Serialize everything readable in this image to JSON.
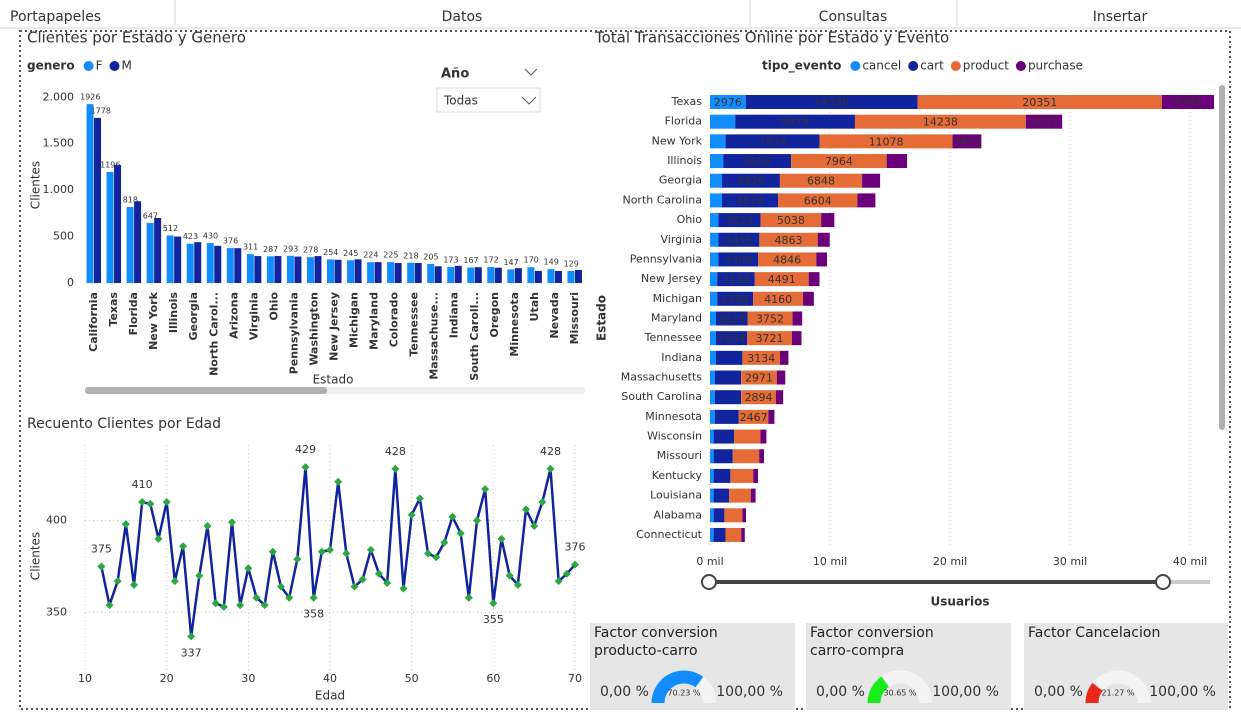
{
  "ribbon": {
    "tabs": [
      "Portapapeles",
      "Datos",
      "Consultas",
      "Insertar"
    ]
  },
  "slicer": {
    "title": "Año",
    "selection": "Todas"
  },
  "chart_data": [
    {
      "type": "bar",
      "title": "Clientes por Estado y Genero",
      "legend_title": "genero",
      "x_label": "Estado",
      "y_label": "Clientes",
      "categories": [
        "California",
        "Texas",
        "Florida",
        "New York",
        "Illinois",
        "Georgia",
        "North Carol...",
        "Arizona",
        "Virginia",
        "Ohio",
        "Pennsylvania",
        "Washington",
        "New Jersey",
        "Michigan",
        "Maryland",
        "Colorado",
        "Tennessee",
        "Massachuse...",
        "Indiana",
        "South Caroll...",
        "Oregon",
        "Minnesota",
        "Utah",
        "Nevada",
        "Missouri"
      ],
      "series": [
        {
          "name": "F",
          "color": "#118dff",
          "data_labels": true,
          "values": [
            1926,
            1196,
            818,
            647,
            512,
            423,
            430,
            376,
            311,
            287,
            293,
            278,
            254,
            245,
            224,
            225,
            218,
            205,
            173,
            167,
            172,
            147,
            170,
            149,
            129
          ]
        },
        {
          "name": "M",
          "color": "#12239e",
          "data_labels": false,
          "values": [
            1778,
            1270,
            880,
            700,
            500,
            440,
            400,
            375,
            290,
            290,
            285,
            290,
            250,
            255,
            225,
            215,
            215,
            180,
            185,
            170,
            165,
            160,
            130,
            130,
            140
          ],
          "value_labels": [
            "1778",
            null,
            null,
            null,
            null,
            null,
            null,
            null,
            null,
            null,
            null,
            null,
            null,
            null,
            null,
            null,
            null,
            null,
            null,
            null,
            null,
            null,
            null,
            null,
            null
          ]
        }
      ],
      "ylim": [
        0,
        2100
      ],
      "yticks": [
        0,
        500,
        {
          "value": 1000,
          "label": "1.000"
        },
        {
          "value": 1500,
          "label": "1.500"
        },
        {
          "value": 2000,
          "label": "2.000"
        }
      ],
      "grid": false
    },
    {
      "type": "barh",
      "title": "Total Transacciones Online por Estado y Evento",
      "legend_title": "tipo_evento",
      "x_label": "Usuarios",
      "y_label": "Estado",
      "categories": [
        "Texas",
        "Florida",
        "New York",
        "Illinois",
        "Georgia",
        "North Carolina",
        "Ohio",
        "Virginia",
        "Pennsylvania",
        "New Jersey",
        "Michigan",
        "Maryland",
        "Tennessee",
        "Indiana",
        "Massachusetts",
        "South Carolina",
        "Minnesota",
        "Wisconsin",
        "Missouri",
        "Kentucky",
        "Louisiana",
        "Alabama",
        "Connecticut"
      ],
      "series": [
        {
          "name": "cancel",
          "color": "#118dff",
          "values": [
            2976,
            2100,
            1300,
            1100,
            1000,
            1000,
            700,
            700,
            700,
            600,
            600,
            500,
            500,
            500,
            400,
            400,
            400,
            300,
            300,
            300,
            300,
            300,
            300
          ]
        },
        {
          "name": "cart",
          "color": "#12239e",
          "values": [
            14330,
            9979,
            7834,
            5658,
            4826,
            4676,
            3523,
            3415,
            3309,
            3134,
            2994,
            2628,
            2604,
            2200,
            2200,
            2200,
            2000,
            1700,
            1600,
            1400,
            1300,
            900,
            1000
          ]
        },
        {
          "name": "product",
          "color": "#e66c37",
          "values": [
            20351,
            14238,
            11078,
            7964,
            6848,
            6604,
            5038,
            4863,
            4846,
            4491,
            4160,
            3752,
            3721,
            3134,
            2971,
            2894,
            2467,
            2200,
            2200,
            1900,
            1800,
            1500,
            1300
          ]
        },
        {
          "name": "purchase",
          "color": "#6b007b",
          "values": [
            4345,
            3033,
            2401,
            1700,
            1500,
            1500,
            1100,
            1000,
            900,
            900,
            900,
            800,
            800,
            700,
            700,
            600,
            500,
            500,
            400,
            400,
            400,
            300,
            300
          ]
        }
      ],
      "stacked": true,
      "xlim": [
        0,
        42000
      ],
      "xticks": [
        {
          "value": 0,
          "label": "0 mil"
        },
        {
          "value": 10000,
          "label": "10 mil"
        },
        {
          "value": 20000,
          "label": "20 mil"
        },
        {
          "value": 30000,
          "label": "30 mil"
        },
        {
          "value": 40000,
          "label": "40 mil"
        }
      ],
      "grid": true
    },
    {
      "type": "line",
      "title": "Recuento Clientes por Edad",
      "x_label": "Edad",
      "y_label": "Clientes",
      "x": [
        12,
        13,
        14,
        15,
        16,
        17,
        18,
        19,
        20,
        21,
        22,
        23,
        24,
        25,
        26,
        27,
        28,
        29,
        30,
        31,
        32,
        33,
        34,
        35,
        36,
        37,
        38,
        39,
        40,
        41,
        42,
        43,
        44,
        45,
        46,
        47,
        48,
        49,
        50,
        51,
        52,
        53,
        54,
        55,
        56,
        57,
        58,
        59,
        60,
        61,
        62,
        63,
        64,
        65,
        66,
        67,
        68,
        69,
        70
      ],
      "series": [
        {
          "name": "Clientes",
          "color": "#12239e",
          "marker_color": "#2ba640",
          "values": [
            375,
            354,
            367,
            398,
            365,
            410,
            409,
            390,
            410,
            367,
            386,
            337,
            370,
            397,
            355,
            353,
            399,
            354,
            374,
            358,
            354,
            383,
            364,
            358,
            379,
            429,
            358,
            383,
            384,
            421,
            382,
            364,
            368,
            384,
            371,
            366,
            428,
            363,
            403,
            412,
            382,
            380,
            388,
            402,
            393,
            358,
            400,
            417,
            355,
            390,
            370,
            365,
            406,
            397,
            410,
            428,
            367,
            371,
            376
          ],
          "value_labels": [
            "375",
            null,
            null,
            null,
            null,
            "410",
            null,
            null,
            null,
            null,
            null,
            "337",
            null,
            null,
            null,
            null,
            null,
            null,
            null,
            null,
            null,
            null,
            null,
            null,
            null,
            "429",
            "358",
            null,
            null,
            null,
            null,
            null,
            null,
            null,
            null,
            null,
            "428",
            null,
            null,
            null,
            null,
            null,
            null,
            null,
            null,
            null,
            null,
            null,
            "355",
            null,
            null,
            null,
            null,
            null,
            null,
            "428",
            null,
            null,
            "376"
          ]
        }
      ],
      "xlim": [
        10,
        70
      ],
      "xticks": [
        10,
        20,
        30,
        40,
        50,
        60,
        70
      ],
      "ylim": [
        316,
        441
      ],
      "yticks": [
        350,
        400
      ],
      "grid": true
    },
    {
      "type": "gauge",
      "title": "Factor conversion producto-carro",
      "value": 70.23,
      "value_label": "70.23 %",
      "min": {
        "value": 0,
        "label": "0,00 %"
      },
      "max": {
        "value": 100,
        "label": "100,00 %"
      },
      "color": "#118dff"
    },
    {
      "type": "gauge",
      "title": "Factor conversion carro-compra",
      "value": 30.65,
      "value_label": "30.65 %",
      "min": {
        "value": 0,
        "label": "0,00 %"
      },
      "max": {
        "value": 100,
        "label": "100,00 %"
      },
      "color": "#1aee1a"
    },
    {
      "type": "gauge",
      "title": "Factor Cancelacion",
      "value": 21.27,
      "value_label": "21.27 %",
      "min": {
        "value": 0,
        "label": "0,00 %"
      },
      "max": {
        "value": 100,
        "label": "100,00 %"
      },
      "color": "#e8291c"
    }
  ]
}
